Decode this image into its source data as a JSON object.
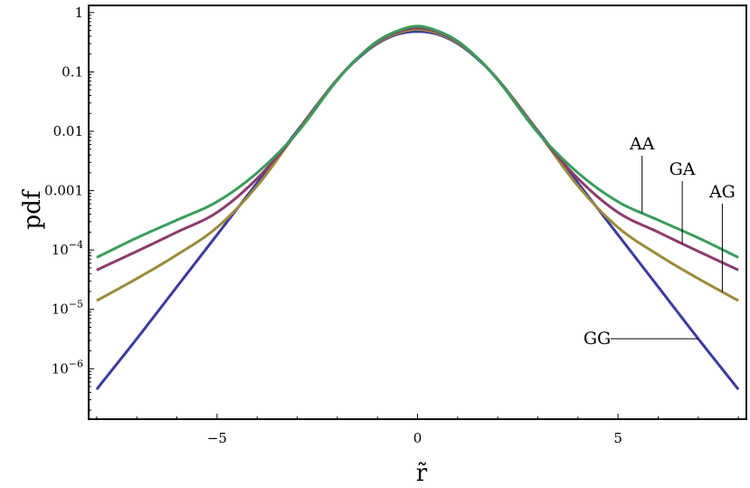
{
  "chart_data": {
    "type": "line",
    "xlabel": "r̃",
    "ylabel": "pdf",
    "xlim": [
      -8.2,
      8.2
    ],
    "ylim_log10": [
      -6.85,
      0.12
    ],
    "yscale": "log",
    "grid": false,
    "x_ticks": [
      {
        "value": -5,
        "label": "−5"
      },
      {
        "value": 0,
        "label": "0"
      },
      {
        "value": 5,
        "label": "5"
      }
    ],
    "y_ticks": [
      {
        "log10": 0,
        "base": "1",
        "exp": ""
      },
      {
        "log10": -1,
        "base": "0.1",
        "exp": ""
      },
      {
        "log10": -2,
        "base": "0.01",
        "exp": ""
      },
      {
        "log10": -3,
        "base": "0.001",
        "exp": ""
      },
      {
        "log10": -4,
        "base": "10",
        "exp": "−4"
      },
      {
        "log10": -5,
        "base": "10",
        "exp": "−5"
      },
      {
        "log10": -6,
        "base": "10",
        "exp": "−6"
      }
    ],
    "series": [
      {
        "name": "GG",
        "color": "#3c3c9c",
        "label_x": 7.0,
        "x": [
          -8,
          -7,
          -6,
          -5,
          -4,
          -3,
          -2,
          -1.5,
          -1,
          -0.5,
          0,
          0.5,
          1,
          1.5,
          2,
          3,
          4,
          5,
          6,
          7,
          8
        ],
        "y": [
          4.5e-07,
          3.2e-06,
          2.4e-05,
          0.00018,
          0.00135,
          0.0102,
          0.075,
          0.165,
          0.3,
          0.43,
          0.48,
          0.43,
          0.3,
          0.165,
          0.075,
          0.0102,
          0.00135,
          0.00018,
          2.4e-05,
          3.2e-06,
          4.5e-07
        ]
      },
      {
        "name": "AG",
        "color": "#9a8c3c",
        "label_x": 7.6,
        "x": [
          -8,
          -7,
          -6,
          -5,
          -4,
          -3,
          -2,
          -1.5,
          -1,
          -0.5,
          0,
          0.5,
          1,
          1.5,
          2,
          3,
          4,
          5,
          6,
          7,
          8
        ],
        "y": [
          1.4e-05,
          3.3e-05,
          8.3e-05,
          0.00024,
          0.0012,
          0.0098,
          0.075,
          0.17,
          0.31,
          0.45,
          0.52,
          0.45,
          0.31,
          0.17,
          0.075,
          0.0098,
          0.0012,
          0.00024,
          8.3e-05,
          3.3e-05,
          1.4e-05
        ]
      },
      {
        "name": "GA",
        "color": "#8c3c6c",
        "label_x": 6.6,
        "x": [
          -8,
          -7,
          -6,
          -5,
          -4,
          -3,
          -2,
          -1.5,
          -1,
          -0.5,
          0,
          0.5,
          1,
          1.5,
          2,
          3,
          4,
          5,
          6,
          7,
          8
        ],
        "y": [
          4.6e-05,
          9.5e-05,
          0.0002,
          0.00043,
          0.0016,
          0.0096,
          0.074,
          0.17,
          0.32,
          0.47,
          0.55,
          0.47,
          0.32,
          0.17,
          0.074,
          0.0096,
          0.0016,
          0.00043,
          0.0002,
          9.5e-05,
          4.6e-05
        ]
      },
      {
        "name": "AA",
        "color": "#3c9c5c",
        "label_x": 5.6,
        "x": [
          -8,
          -7,
          -6,
          -5,
          -4,
          -3,
          -2,
          -1.5,
          -1,
          -0.5,
          0,
          0.5,
          1,
          1.5,
          2,
          3,
          4,
          5,
          6,
          7,
          8
        ],
        "y": [
          7.5e-05,
          0.00016,
          0.00032,
          0.00065,
          0.002,
          0.0095,
          0.073,
          0.17,
          0.33,
          0.49,
          0.59,
          0.49,
          0.33,
          0.17,
          0.073,
          0.0095,
          0.002,
          0.00065,
          0.00032,
          0.00016,
          7.5e-05
        ]
      }
    ]
  }
}
